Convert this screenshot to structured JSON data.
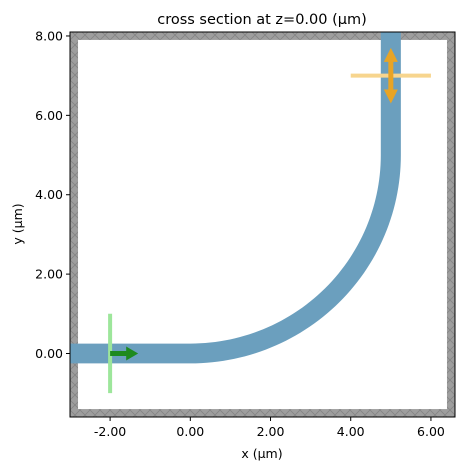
{
  "figure": {
    "title": "cross section at z=0.00 (μm)",
    "xlabel": "x (μm)",
    "ylabel": "y (μm)"
  },
  "chart_data": {
    "type": "simulation-cross-section",
    "title": "cross section at z=0.00 (μm)",
    "xlabel": "x (μm)",
    "ylabel": "y (μm)",
    "xlim": [
      -3.0,
      6.6
    ],
    "ylim": [
      -1.6,
      8.1
    ],
    "xticks": [
      -2.0,
      0.0,
      2.0,
      4.0,
      6.0
    ],
    "xtick_labels": [
      "-2.00",
      "0.00",
      "2.00",
      "4.00",
      "6.00"
    ],
    "yticks": [
      0.0,
      2.0,
      4.0,
      6.0,
      8.0
    ],
    "ytick_labels": [
      "0.00",
      "2.00",
      "4.00",
      "6.00",
      "8.00"
    ],
    "grid": false,
    "boundary_layer": {
      "thickness": 0.2,
      "color": "#9e9e9e",
      "line_color": "#7a7a7a"
    },
    "waveguide": {
      "color": "#6b9fbe",
      "width": 0.5,
      "straight_in": {
        "x_start": -3.0,
        "x_end": 0.0,
        "y": 0.0
      },
      "bend": {
        "center_x": 0.0,
        "center_y": 5.0,
        "radius": 5.0
      },
      "straight_out": {
        "x": 5.0,
        "y_start": 5.0,
        "y_end": 8.1
      }
    },
    "source": {
      "plane_x": -2.0,
      "y_range": [
        -1.0,
        1.0
      ],
      "plane_color": "#9de69b",
      "arrow_from_x": -2.0,
      "arrow_to_x": -1.3,
      "arrow_y": 0.0,
      "arrow_color": "#1e8a1e"
    },
    "monitor": {
      "plane_y": 7.0,
      "x_range": [
        4.0,
        6.0
      ],
      "plane_color": "#f7d58e",
      "arrow_x": 5.0,
      "arrow_y_range": [
        6.3,
        7.7
      ],
      "arrow_color": "#e8a425"
    }
  }
}
